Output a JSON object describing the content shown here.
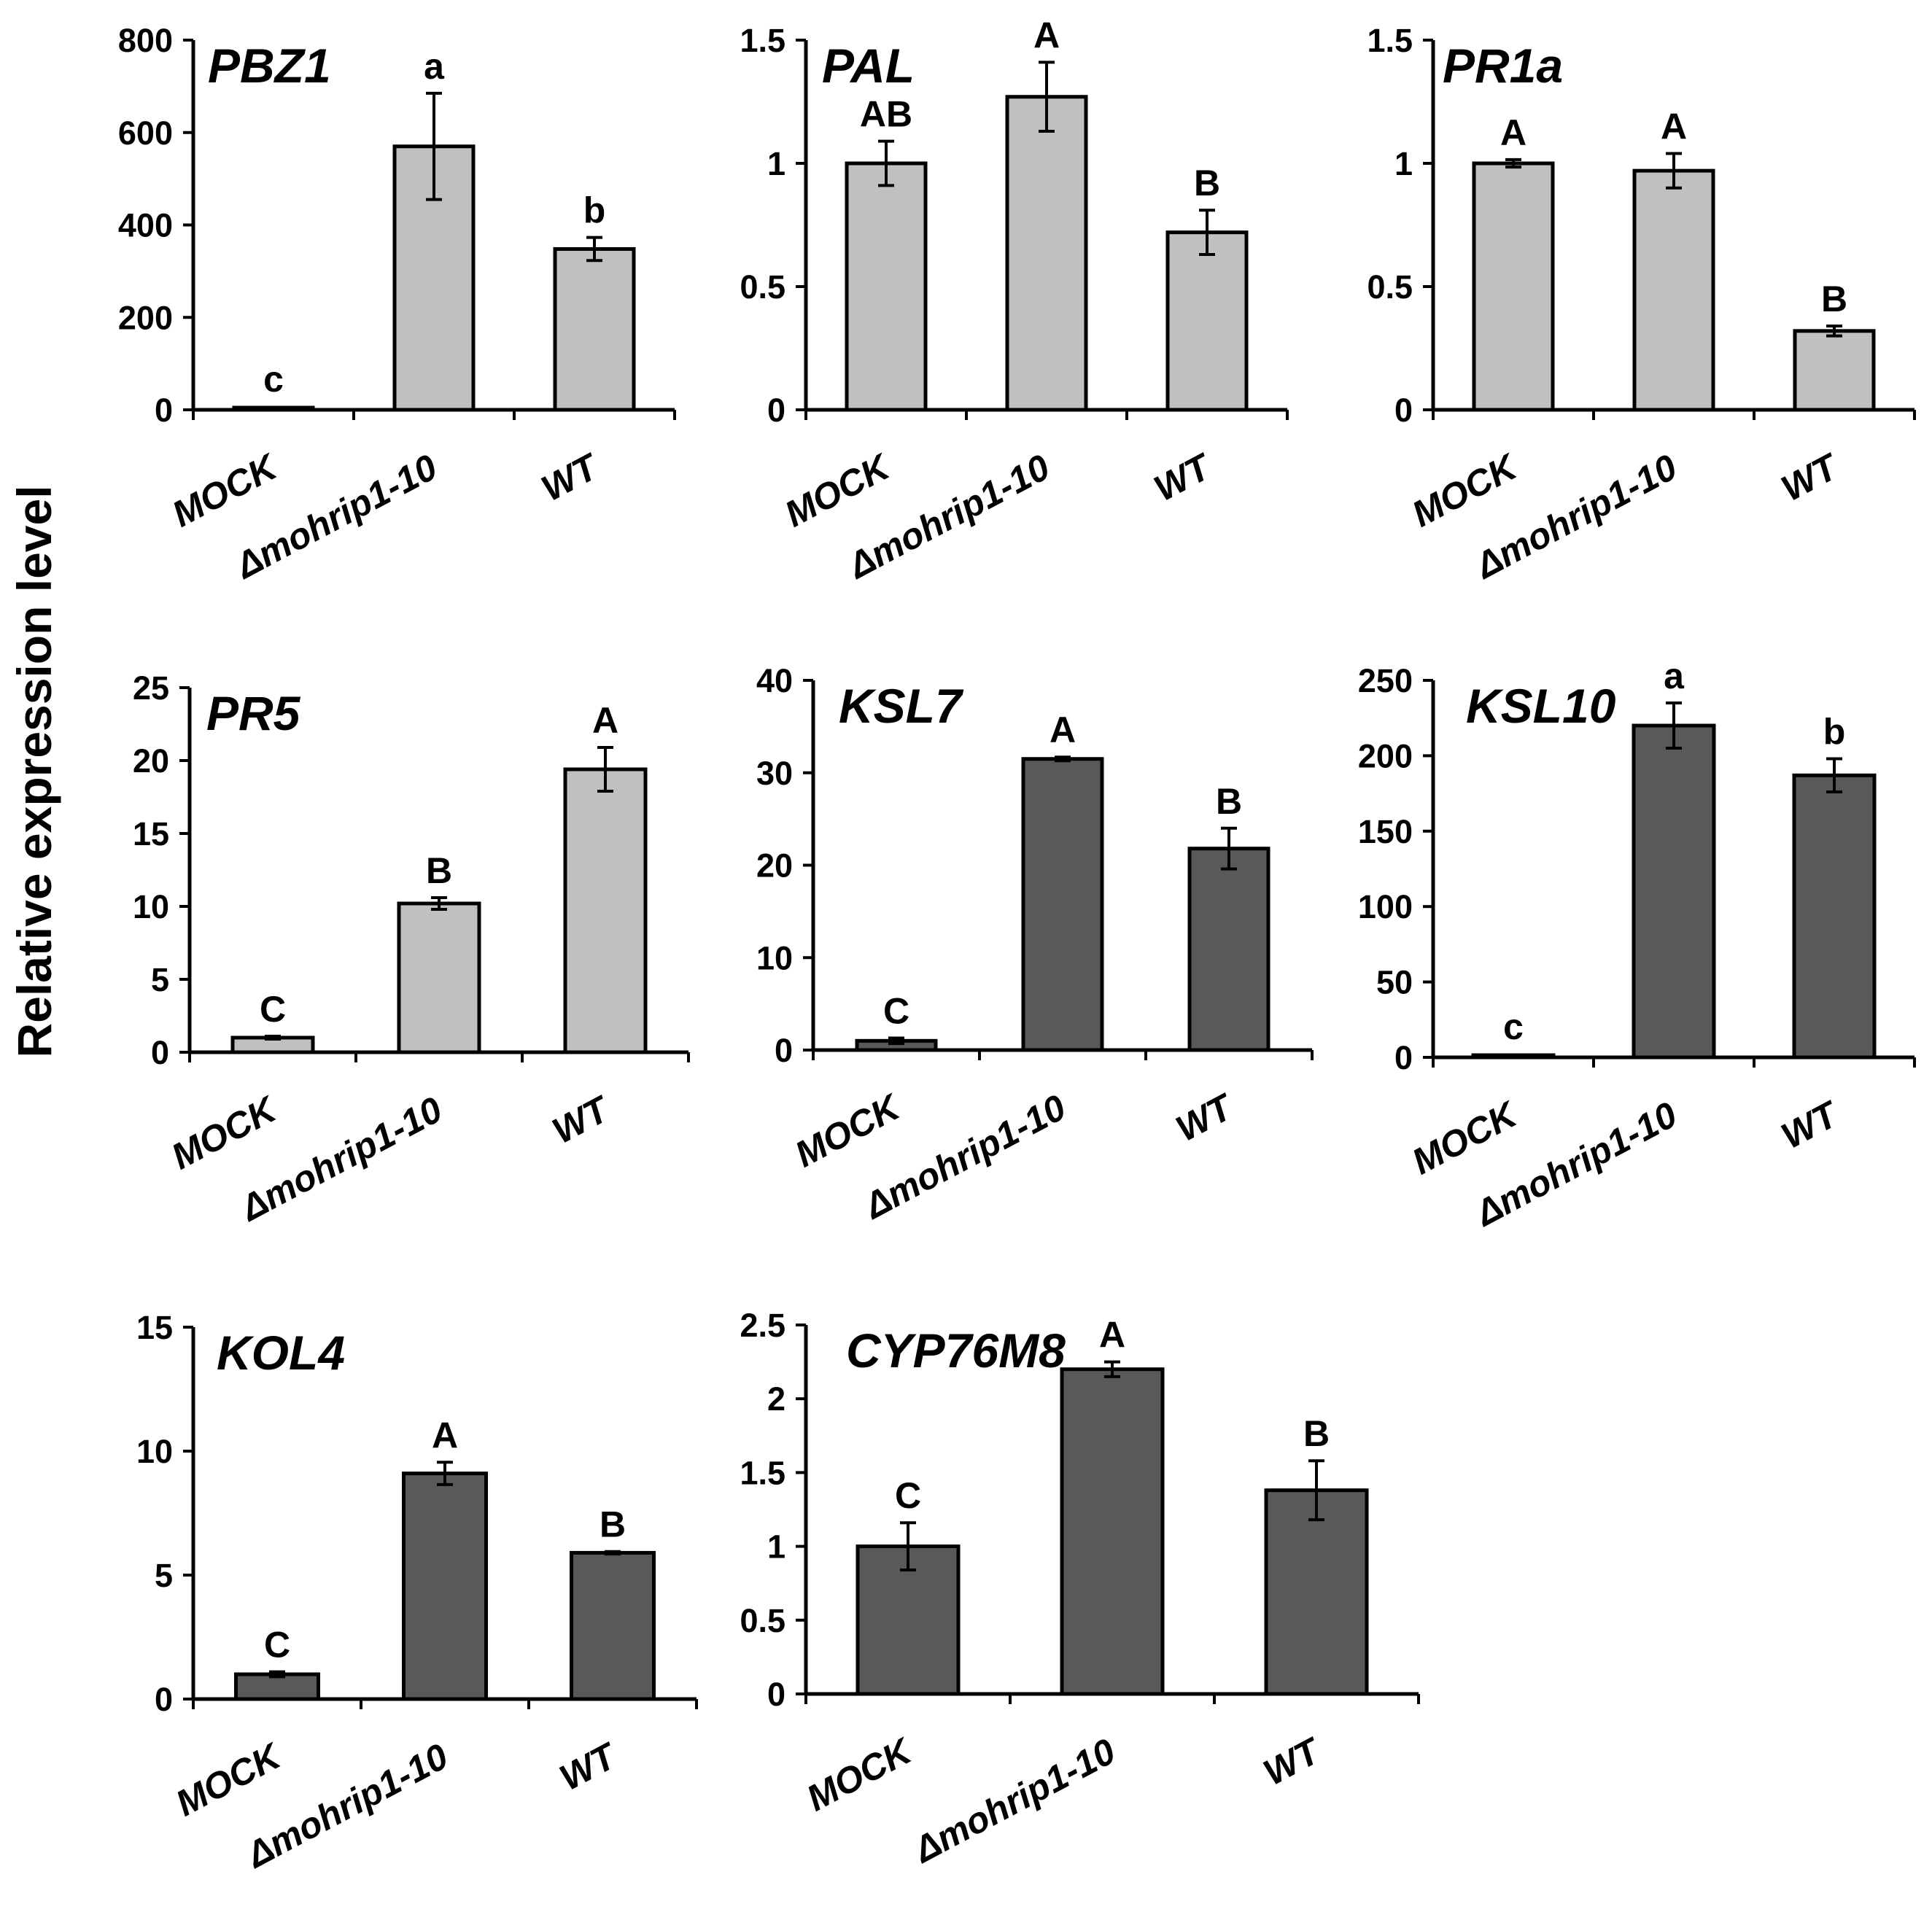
{
  "figure": {
    "y_axis_title": "Relative expression level",
    "bar_colors": {
      "light": "#c0c0c0",
      "dark": "#595959"
    },
    "axis_color": "#000000"
  },
  "chart_data": [
    {
      "type": "bar",
      "title": "PBZ1",
      "color": "light",
      "ylim": [
        0,
        800
      ],
      "yticks": [
        0,
        200,
        400,
        600,
        800
      ],
      "ytick_labels": [
        "0",
        "200",
        "400",
        "600",
        "800"
      ],
      "categories": [
        "MOCK",
        "Δmohrip1-10",
        "WT"
      ],
      "values": [
        1,
        570,
        348
      ],
      "errors": [
        0,
        115,
        25
      ],
      "significance": [
        "c",
        "a",
        "b"
      ]
    },
    {
      "type": "bar",
      "title": "PAL",
      "color": "light",
      "ylim": [
        0,
        1.5
      ],
      "yticks": [
        0,
        0.5,
        1,
        1.5
      ],
      "ytick_labels": [
        "0",
        "0.5",
        "1",
        "1.5"
      ],
      "categories": [
        "MOCK",
        "Δmohrip1-10",
        "WT"
      ],
      "values": [
        1.0,
        1.27,
        0.72
      ],
      "errors": [
        0.09,
        0.14,
        0.09
      ],
      "significance": [
        "AB",
        "A",
        "B"
      ]
    },
    {
      "type": "bar",
      "title": "PR1a",
      "color": "light",
      "ylim": [
        0,
        1.5
      ],
      "yticks": [
        0,
        0.5,
        1,
        1.5
      ],
      "ytick_labels": [
        "0",
        "0.5",
        "1",
        "1.5"
      ],
      "categories": [
        "MOCK",
        "Δmohrip1-10",
        "WT"
      ],
      "values": [
        1.0,
        0.97,
        0.32
      ],
      "errors": [
        0.015,
        0.07,
        0.02
      ],
      "significance": [
        "A",
        "A",
        "B"
      ]
    },
    {
      "type": "bar",
      "title": "PR5",
      "color": "light",
      "ylim": [
        0,
        25
      ],
      "yticks": [
        0,
        5,
        10,
        15,
        20,
        25
      ],
      "ytick_labels": [
        "0",
        "5",
        "10",
        "15",
        "20",
        "25"
      ],
      "categories": [
        "MOCK",
        "Δmohrip1-10",
        "WT"
      ],
      "values": [
        1.0,
        10.2,
        19.4
      ],
      "errors": [
        0.1,
        0.4,
        1.5
      ],
      "significance": [
        "C",
        "B",
        "A"
      ]
    },
    {
      "type": "bar",
      "title": "KSL7",
      "color": "dark",
      "ylim": [
        0,
        40
      ],
      "yticks": [
        0,
        10,
        20,
        30,
        40
      ],
      "ytick_labels": [
        "0",
        "10",
        "20",
        "30",
        "40"
      ],
      "categories": [
        "MOCK",
        "Δmohrip1-10",
        "WT"
      ],
      "values": [
        1.0,
        31.5,
        21.8
      ],
      "errors": [
        0.3,
        0.2,
        2.2
      ],
      "significance": [
        "C",
        "A",
        "B"
      ]
    },
    {
      "type": "bar",
      "title": "KSL10",
      "color": "dark",
      "ylim": [
        0,
        250
      ],
      "yticks": [
        0,
        50,
        100,
        150,
        200,
        250
      ],
      "ytick_labels": [
        "0",
        "50",
        "100",
        "150",
        "200",
        "250"
      ],
      "categories": [
        "MOCK",
        "Δmohrip1-10",
        "WT"
      ],
      "values": [
        1,
        220,
        187
      ],
      "errors": [
        0,
        15,
        11
      ],
      "significance": [
        "c",
        "a",
        "b"
      ]
    },
    {
      "type": "bar",
      "title": "KOL4",
      "color": "dark",
      "ylim": [
        0,
        15
      ],
      "yticks": [
        0,
        5,
        10,
        15
      ],
      "ytick_labels": [
        "0",
        "5",
        "10",
        "15"
      ],
      "categories": [
        "MOCK",
        "Δmohrip1-10",
        "WT"
      ],
      "values": [
        1.0,
        9.1,
        5.9
      ],
      "errors": [
        0.1,
        0.45,
        0.05
      ],
      "significance": [
        "C",
        "A",
        "B"
      ]
    },
    {
      "type": "bar",
      "title": "CYP76M8",
      "color": "dark",
      "ylim": [
        0,
        2.5
      ],
      "yticks": [
        0,
        0.5,
        1,
        1.5,
        2,
        2.5
      ],
      "ytick_labels": [
        "0",
        "0.5",
        "1",
        "1.5",
        "2",
        "2.5"
      ],
      "categories": [
        "MOCK",
        "Δmohrip1-10",
        "WT"
      ],
      "values": [
        1.0,
        2.2,
        1.38
      ],
      "errors": [
        0.16,
        0.05,
        0.2
      ],
      "significance": [
        "C",
        "A",
        "B"
      ]
    }
  ]
}
